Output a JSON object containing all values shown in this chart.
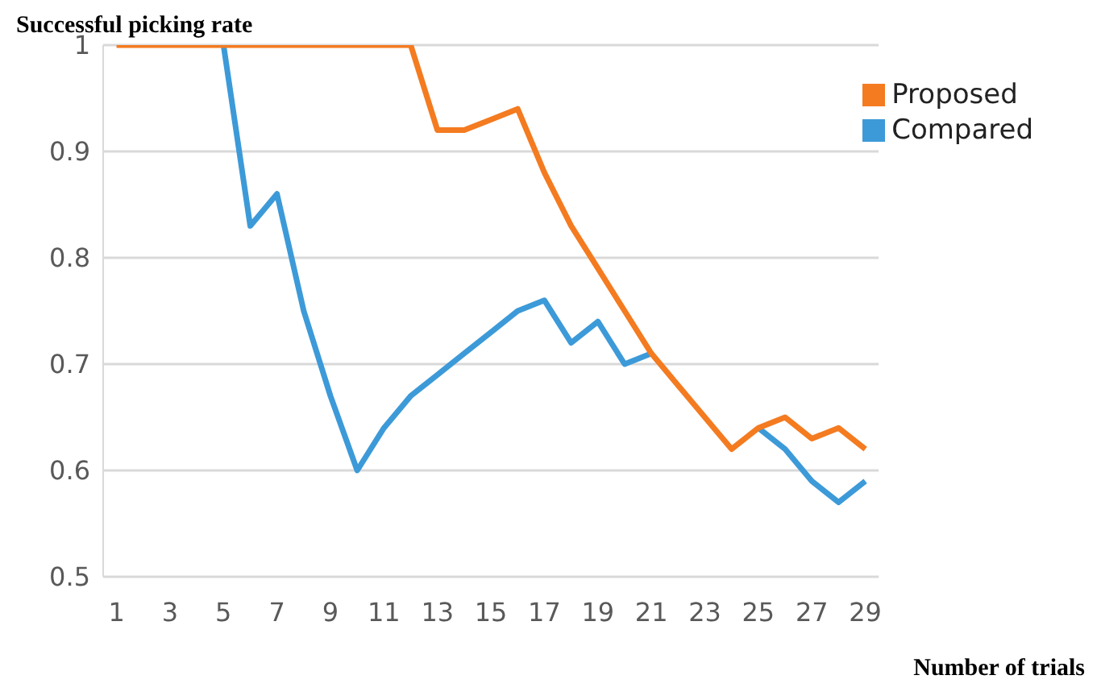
{
  "chart_data": {
    "type": "line",
    "ylabel": "Successful picking rate",
    "xlabel": "Number of trials",
    "x": [
      1,
      2,
      3,
      4,
      5,
      6,
      7,
      8,
      9,
      10,
      11,
      12,
      13,
      14,
      15,
      16,
      17,
      18,
      19,
      20,
      21,
      22,
      23,
      24,
      25,
      26,
      27,
      28,
      29
    ],
    "series": [
      {
        "name": "Proposed",
        "color": "#f47b20",
        "values": [
          1,
          1,
          1,
          1,
          1,
          1,
          1,
          1,
          1,
          1,
          1,
          1,
          0.92,
          0.92,
          0.93,
          0.94,
          0.88,
          0.83,
          0.79,
          0.75,
          0.71,
          0.68,
          0.65,
          0.62,
          0.64,
          0.65,
          0.63,
          0.64,
          0.62
        ]
      },
      {
        "name": "Compared",
        "color": "#3d9ad8",
        "values": [
          null,
          null,
          null,
          null,
          1,
          0.83,
          0.86,
          0.75,
          0.67,
          0.6,
          0.64,
          0.67,
          0.69,
          0.71,
          0.73,
          0.75,
          0.76,
          0.72,
          0.74,
          0.7,
          0.71,
          null,
          null,
          null,
          0.64,
          0.62,
          0.59,
          0.57,
          0.59
        ]
      }
    ],
    "xlim": [
      0.5,
      29.5
    ],
    "xticks": [
      1,
      3,
      5,
      7,
      9,
      11,
      13,
      15,
      17,
      19,
      21,
      23,
      25,
      27,
      29
    ],
    "ylim": [
      0.5,
      1
    ],
    "yticks": [
      0.5,
      0.6,
      0.7,
      0.8,
      0.9,
      1
    ],
    "grid": "y",
    "legend": "top right",
    "marker": "none",
    "line_style": "solid"
  }
}
